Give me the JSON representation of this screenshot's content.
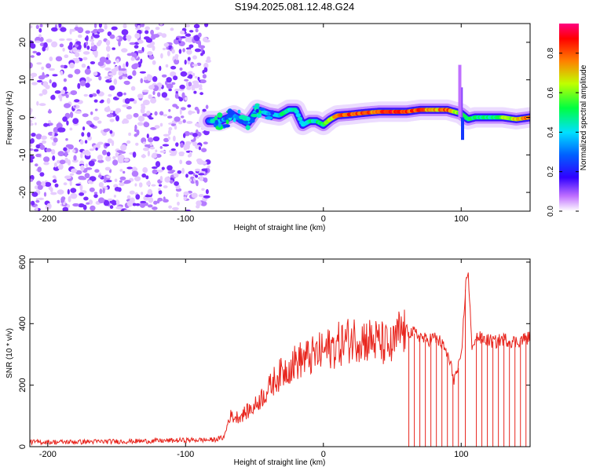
{
  "title": "S194.2025.081.12.48.G24",
  "chart_data": [
    {
      "type": "heatmap",
      "xlabel": "Height of straight line (km)",
      "ylabel": "Frequency (Hz)",
      "xlim": [
        -213,
        150
      ],
      "ylim": [
        -25,
        25
      ],
      "xticks": [
        -200,
        -100,
        0,
        100
      ],
      "yticks": [
        -20,
        -10,
        0,
        10,
        20
      ],
      "colorbar": {
        "label": "Normalized spectral amplitude",
        "range": [
          0,
          0.95
        ],
        "ticks": [
          0.0,
          0.2,
          0.4,
          0.6,
          0.8
        ],
        "tick_labels": [
          "0.0",
          "0.2",
          "0.4",
          "0.6",
          "0.8"
        ],
        "colors": [
          "#ffffff",
          "#7f00ff",
          "#0000ff",
          "#00ffff",
          "#00ff00",
          "#ffff00",
          "#ff8000",
          "#ff0000",
          "#ff0080"
        ]
      },
      "noise_region": {
        "x_range": [
          -213,
          -83
        ],
        "amplitude": 0.1
      },
      "ridge": {
        "x": [
          -83,
          -75,
          -65,
          -55,
          -48,
          -40,
          -32,
          -25,
          -20,
          -15,
          -10,
          -5,
          0,
          5,
          10,
          20,
          30,
          40,
          50,
          60,
          70,
          80,
          90,
          95,
          100,
          105,
          110,
          120,
          130,
          140,
          150
        ],
        "freq": [
          -1,
          -1,
          0.5,
          -1.5,
          2,
          1,
          0.5,
          2,
          2,
          -2,
          -1,
          -1,
          -2,
          -0.5,
          0.5,
          0.8,
          1.2,
          1.5,
          1.5,
          1.5,
          2,
          2,
          2,
          1.5,
          1,
          -0.5,
          0,
          0,
          0,
          -0.5,
          0
        ],
        "amplitude": [
          0.35,
          0.35,
          0.3,
          0.35,
          0.35,
          0.4,
          0.45,
          0.5,
          0.45,
          0.45,
          0.5,
          0.45,
          0.55,
          0.7,
          0.8,
          0.85,
          0.85,
          0.8,
          0.9,
          0.85,
          0.85,
          0.75,
          0.85,
          0.7,
          0.5,
          0.5,
          0.55,
          0.5,
          0.6,
          0.7,
          0.85
        ]
      }
    },
    {
      "type": "line",
      "xlabel": "Height of straight line (km)",
      "ylabel": "SNR (10 * v/v)",
      "xlim": [
        -213,
        150
      ],
      "ylim": [
        0,
        610
      ],
      "xticks": [
        -200,
        -100,
        0,
        100
      ],
      "yticks": [
        0,
        200,
        400,
        600
      ],
      "color": "#e8261e",
      "series": [
        {
          "x": [
            -213,
            -190,
            -170,
            -150,
            -130,
            -110,
            -90,
            -80,
            -72,
            -68,
            -64,
            -60,
            -55,
            -50,
            -45,
            -40,
            -35,
            -30,
            -25,
            -20,
            -15,
            -10,
            -5,
            0,
            5,
            10,
            15,
            20,
            25,
            30,
            35,
            40,
            45,
            50,
            55,
            60,
            65,
            70,
            75,
            80,
            85,
            90,
            95,
            100,
            103,
            105,
            108,
            110,
            115,
            120,
            125,
            130,
            135,
            140,
            145,
            150
          ],
          "y": [
            15,
            15,
            16,
            17,
            18,
            20,
            22,
            22,
            30,
            100,
            95,
            100,
            115,
            130,
            160,
            185,
            220,
            240,
            260,
            275,
            285,
            290,
            300,
            310,
            320,
            330,
            340,
            350,
            355,
            350,
            345,
            340,
            330,
            320,
            370,
            375,
            370,
            360,
            345,
            355,
            340,
            300,
            220,
            280,
            510,
            580,
            300,
            360,
            350,
            345,
            340,
            350,
            345,
            340,
            350,
            355
          ],
          "dips": [
            62,
            66,
            70,
            74,
            78,
            82,
            86,
            90,
            94,
            98,
            103,
            111,
            115,
            119,
            123,
            127,
            131,
            135,
            139,
            143,
            147
          ]
        }
      ]
    }
  ]
}
